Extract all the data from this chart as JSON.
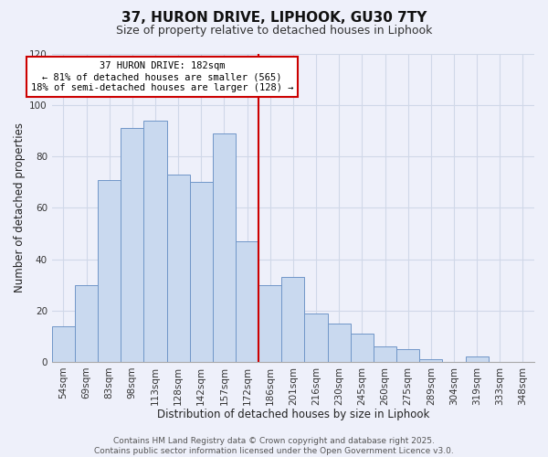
{
  "title": "37, HURON DRIVE, LIPHOOK, GU30 7TY",
  "subtitle": "Size of property relative to detached houses in Liphook",
  "xlabel": "Distribution of detached houses by size in Liphook",
  "ylabel": "Number of detached properties",
  "bar_labels": [
    "54sqm",
    "69sqm",
    "83sqm",
    "98sqm",
    "113sqm",
    "128sqm",
    "142sqm",
    "157sqm",
    "172sqm",
    "186sqm",
    "201sqm",
    "216sqm",
    "230sqm",
    "245sqm",
    "260sqm",
    "275sqm",
    "289sqm",
    "304sqm",
    "319sqm",
    "333sqm",
    "348sqm"
  ],
  "bar_values": [
    14,
    30,
    71,
    91,
    94,
    73,
    70,
    89,
    47,
    30,
    33,
    19,
    15,
    11,
    6,
    5,
    1,
    0,
    2,
    0,
    0
  ],
  "bar_color": "#c9d9ef",
  "bar_edge_color": "#7096c8",
  "vline_x": 8.5,
  "vline_color": "#cc0000",
  "annotation_text": "37 HURON DRIVE: 182sqm\n← 81% of detached houses are smaller (565)\n18% of semi-detached houses are larger (128) →",
  "annotation_box_color": "#ffffff",
  "annotation_box_edge": "#cc0000",
  "ylim": [
    0,
    120
  ],
  "yticks": [
    0,
    20,
    40,
    60,
    80,
    100,
    120
  ],
  "footer": "Contains HM Land Registry data © Crown copyright and database right 2025.\nContains public sector information licensed under the Open Government Licence v3.0.",
  "bg_color": "#eef0fa",
  "grid_color": "#d0d8e8",
  "title_fontsize": 11,
  "subtitle_fontsize": 9,
  "label_fontsize": 8.5,
  "tick_fontsize": 7.5,
  "footer_fontsize": 6.5,
  "annotation_fontsize": 7.5
}
